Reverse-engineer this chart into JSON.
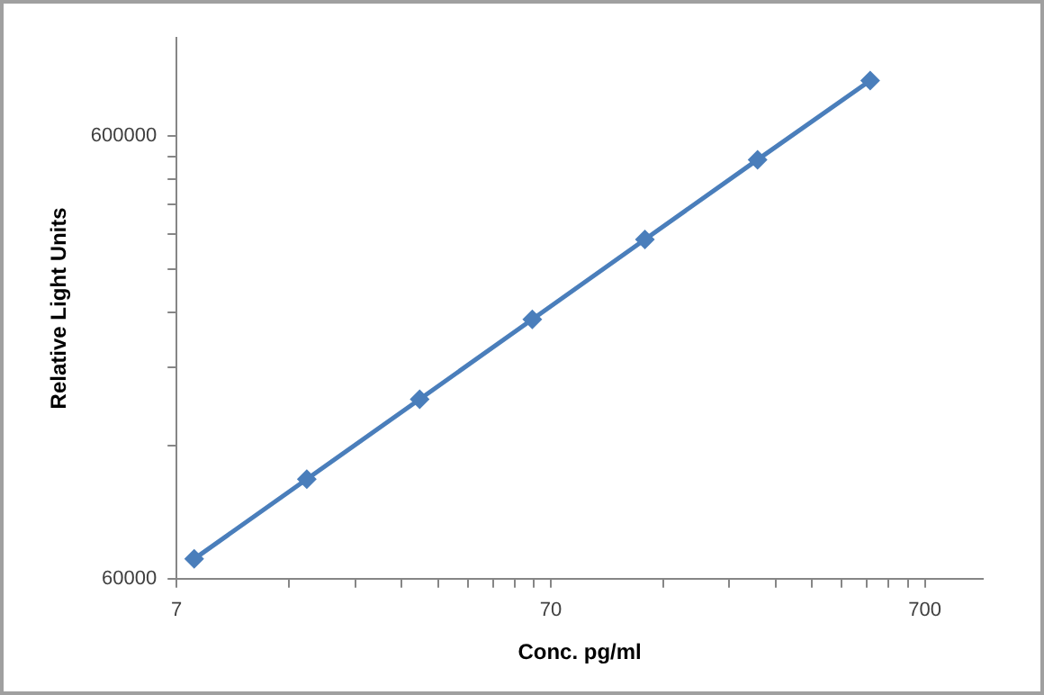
{
  "chart_data": {
    "type": "line",
    "xlabel": "Conc. pg/ml",
    "ylabel": "Relative Light Units",
    "log": "xy",
    "x": [
      7.8,
      15.6,
      31.25,
      62.5,
      125,
      250,
      500
    ],
    "series": [
      {
        "color": "#4a7ebb",
        "values": [
          66500,
          100700,
          152600,
          231100,
          350400,
          530500,
          800600
        ]
      }
    ],
    "xlim": [
      7,
      1000
    ],
    "xticks": [
      7,
      {
        "value": 14,
        "label": null
      },
      {
        "value": 21,
        "label": null
      },
      {
        "value": 28,
        "label": null
      },
      {
        "value": 35,
        "label": null
      },
      {
        "value": 42,
        "label": null
      },
      {
        "value": 49,
        "label": null
      },
      {
        "value": 56,
        "label": null
      },
      {
        "value": 63,
        "label": null
      },
      70,
      {
        "value": 140,
        "label": null
      },
      {
        "value": 210,
        "label": null
      },
      {
        "value": 280,
        "label": null
      },
      {
        "value": 350,
        "label": null
      },
      {
        "value": 420,
        "label": null
      },
      {
        "value": 490,
        "label": null
      },
      {
        "value": 560,
        "label": null
      },
      {
        "value": 630,
        "label": null
      },
      700
    ],
    "ylim": [
      60000,
      1000000
    ],
    "yticks": [
      60000,
      {
        "value": 120000,
        "label": null
      },
      {
        "value": 180000,
        "label": null
      },
      {
        "value": 240000,
        "label": null
      },
      {
        "value": 300000,
        "label": null
      },
      {
        "value": 360000,
        "label": null
      },
      {
        "value": 420000,
        "label": null
      },
      {
        "value": 480000,
        "label": null
      },
      {
        "value": 540000,
        "label": null
      },
      600000
    ],
    "grid": false,
    "legend": false,
    "marker": "diamond",
    "line_style": "solid"
  }
}
